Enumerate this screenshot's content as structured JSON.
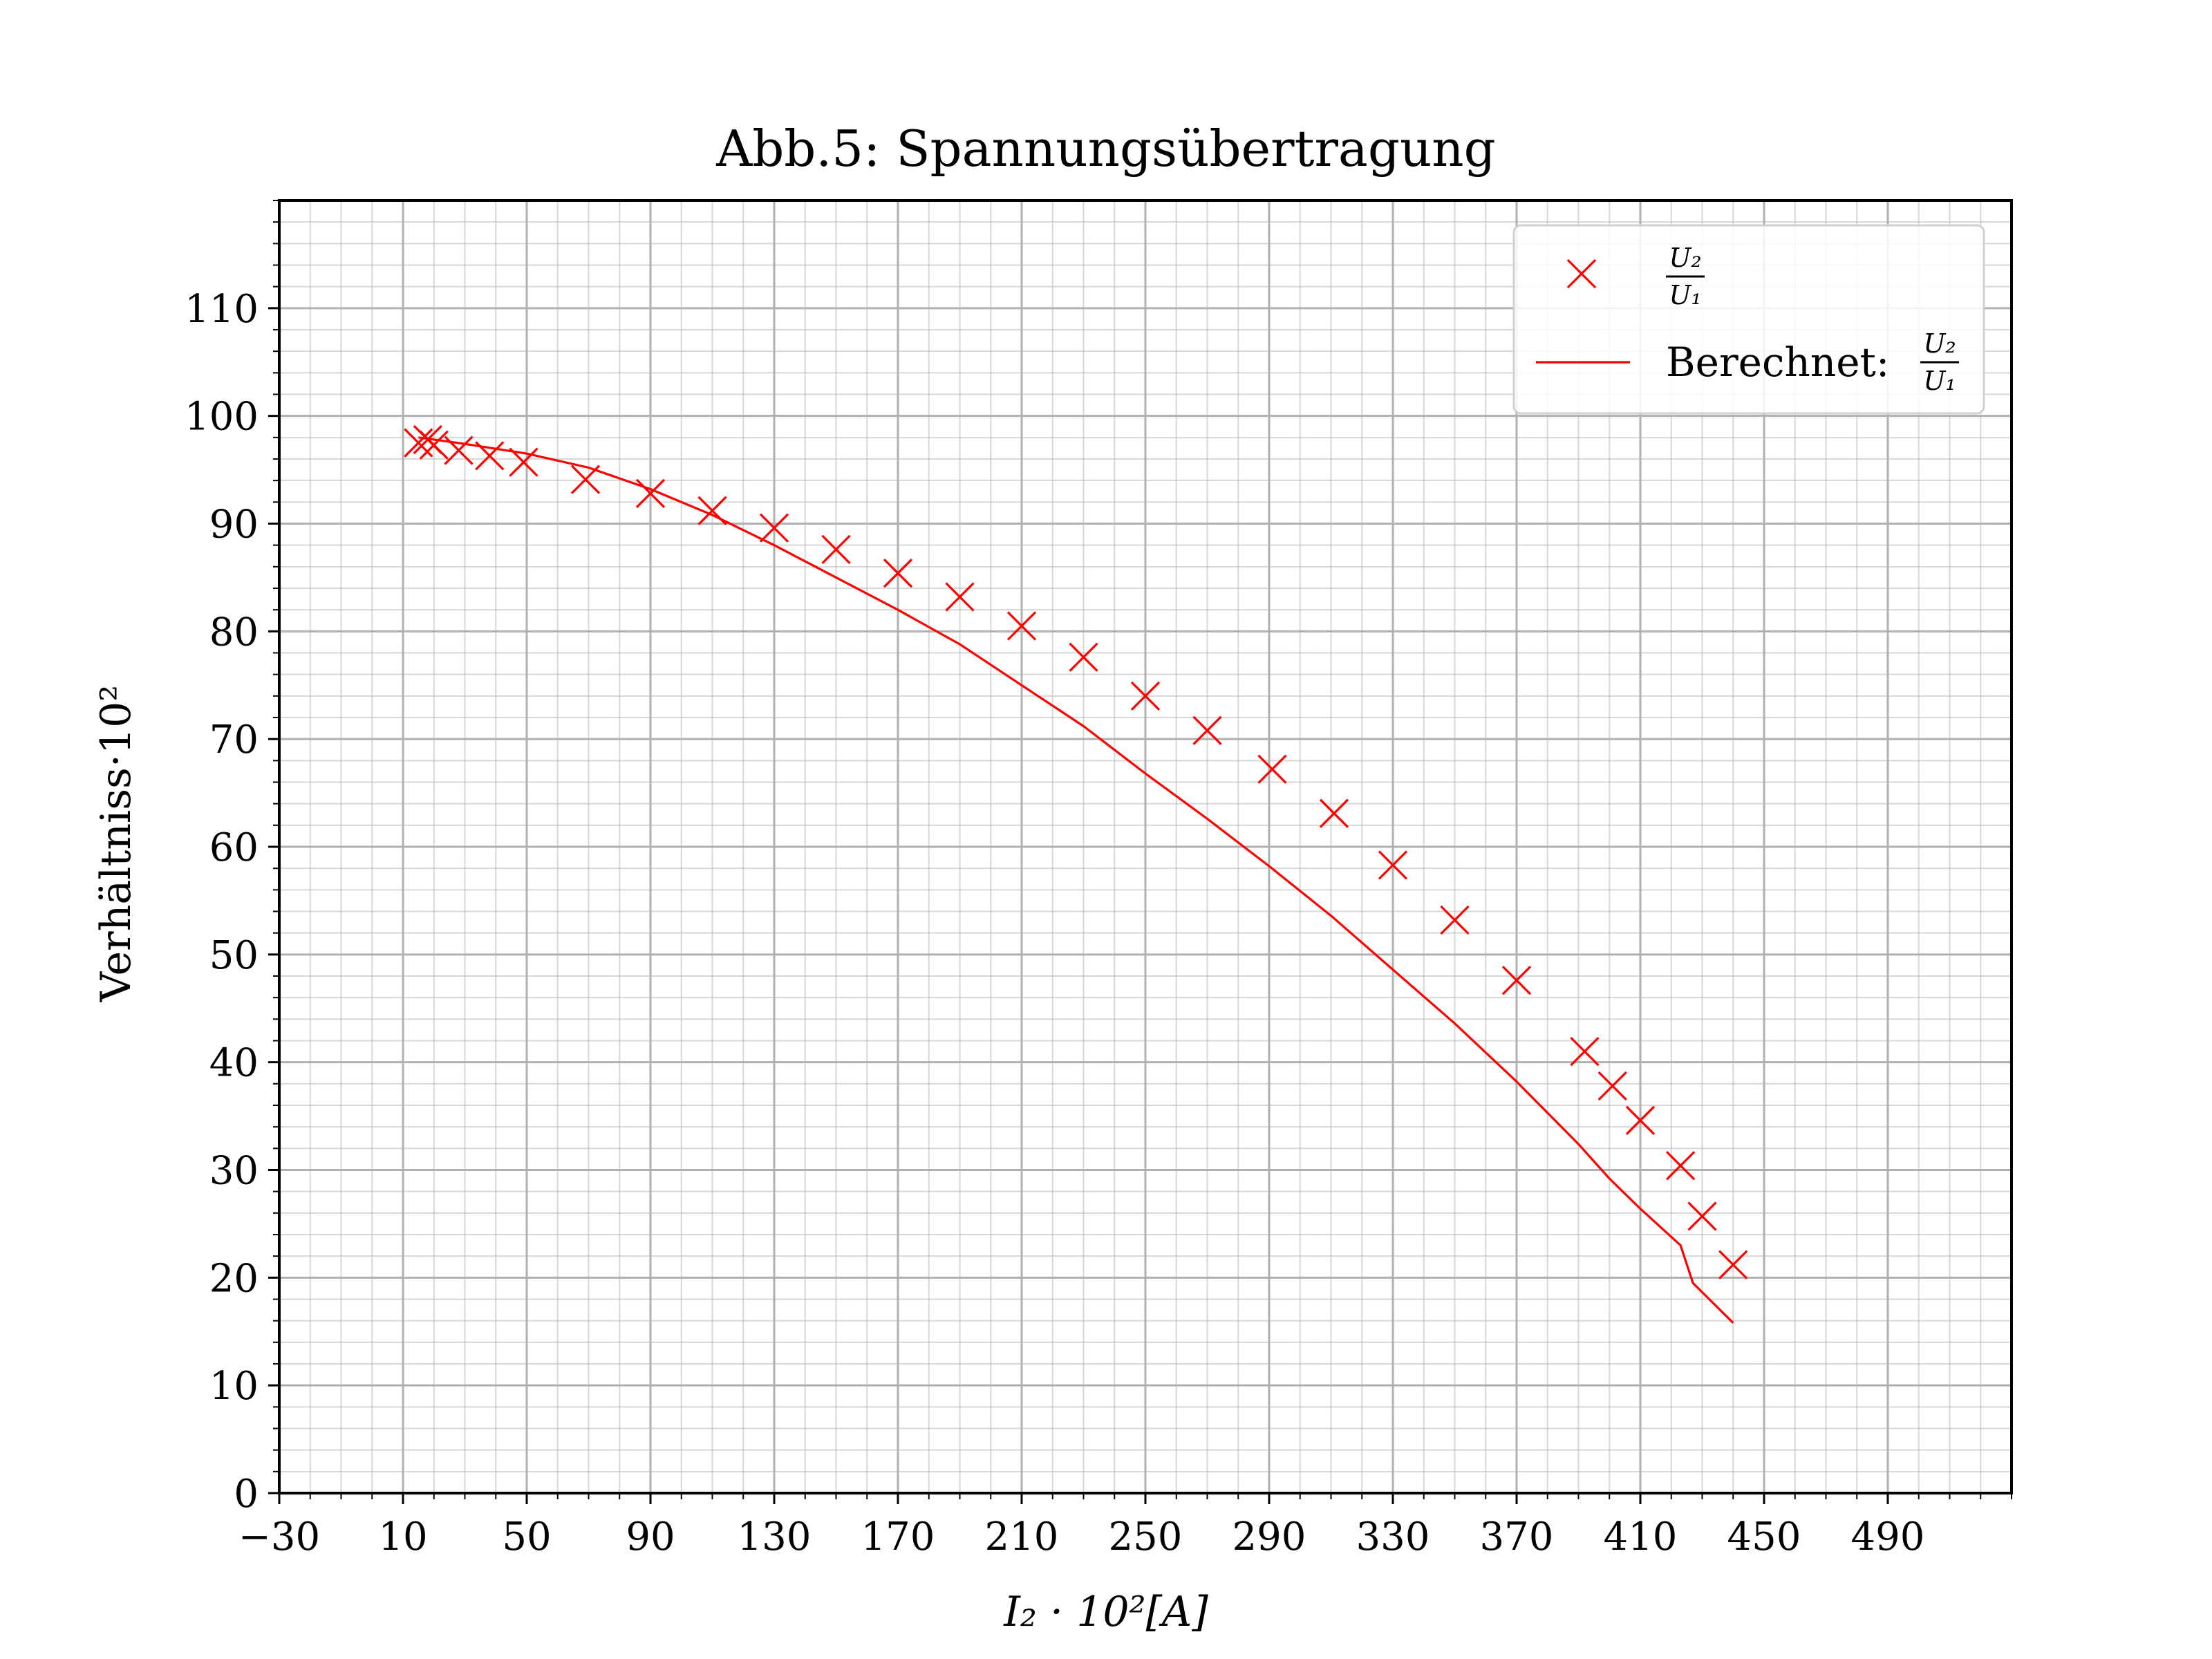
{
  "chart_data": {
    "type": "line",
    "title": "Abb.5: Spannungsübertragung",
    "xlabel": "I₂ · 10²[A]",
    "ylabel": "Verhältniss·10²",
    "xlim": [
      -30,
      530
    ],
    "ylim": [
      0,
      120
    ],
    "xticks": [
      -30,
      10,
      50,
      90,
      130,
      170,
      210,
      250,
      290,
      330,
      370,
      410,
      450,
      490
    ],
    "xtick_labels": [
      "−30",
      "10",
      "50",
      "90",
      "130",
      "170",
      "210",
      "250",
      "290",
      "330",
      "370",
      "410",
      "450",
      "490"
    ],
    "yticks": [
      0,
      10,
      20,
      30,
      40,
      50,
      60,
      70,
      80,
      90,
      100,
      110
    ],
    "ytick_labels": [
      "0",
      "10",
      "20",
      "30",
      "40",
      "50",
      "60",
      "70",
      "80",
      "90",
      "100",
      "110"
    ],
    "grid": true,
    "legend_position": "top-right",
    "series": [
      {
        "name": "U2/U1",
        "legend_num": "U₂",
        "legend_den": "U₁",
        "kind": "scatter",
        "marker": "x",
        "color": "#ff0000",
        "x": [
          15,
          18,
          20,
          28,
          38,
          49,
          69,
          90,
          110,
          130,
          150,
          170,
          190,
          210,
          230,
          250,
          270,
          291,
          311,
          330,
          350,
          370,
          392,
          401,
          410,
          423,
          430,
          440
        ],
        "y": [
          97.5,
          97.8,
          97.3,
          96.8,
          96.3,
          95.7,
          94.1,
          92.8,
          91.2,
          89.6,
          87.6,
          85.4,
          83.2,
          80.5,
          77.6,
          74.0,
          70.8,
          67.2,
          63.1,
          58.3,
          53.2,
          47.6,
          41.0,
          37.8,
          34.6,
          30.4,
          25.7,
          21.2
        ]
      },
      {
        "name": "Berechnet: U2/U1",
        "legend_prefix": "Berechnet:",
        "legend_num": "U₂",
        "legend_den": "U₁",
        "kind": "line",
        "color": "#ff0000",
        "x": [
          15,
          30,
          50,
          70,
          90,
          110,
          130,
          150,
          170,
          190,
          210,
          230,
          250,
          270,
          290,
          310,
          330,
          350,
          370,
          390,
          400,
          410,
          423,
          427,
          440
        ],
        "y": [
          98.0,
          97.4,
          96.5,
          95.2,
          93.2,
          90.8,
          88.0,
          85.0,
          82.0,
          78.8,
          75.0,
          71.2,
          66.8,
          62.6,
          58.2,
          53.6,
          48.6,
          43.6,
          38.2,
          32.4,
          29.2,
          26.4,
          23.0,
          19.5,
          15.8
        ]
      }
    ]
  }
}
